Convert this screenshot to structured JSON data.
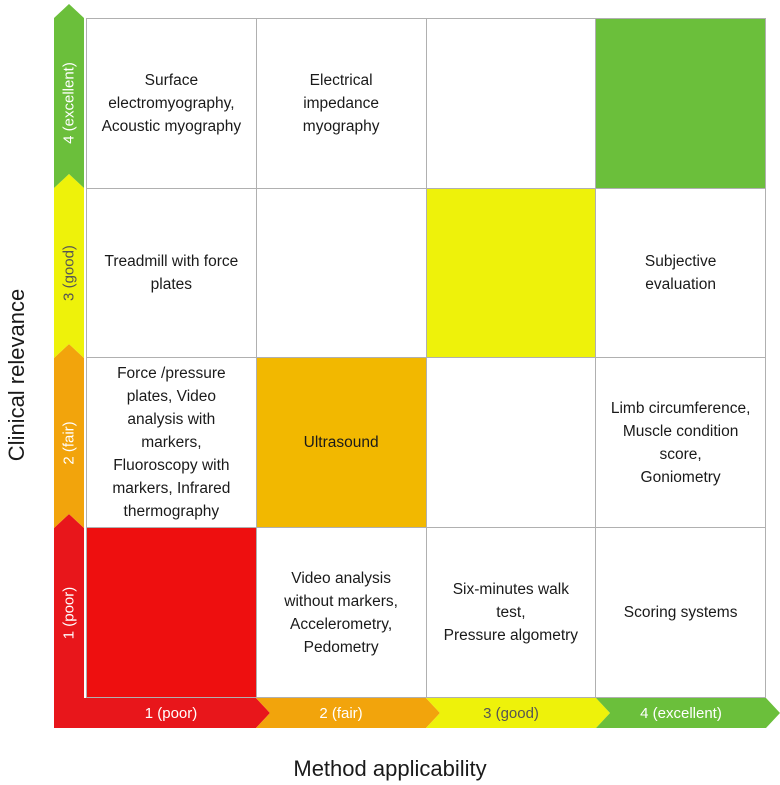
{
  "axes": {
    "x_title": "Method applicability",
    "y_title": "Clinical relevance",
    "x_levels": [
      {
        "label": "1 (poor)",
        "color": "#e8161b"
      },
      {
        "label": "2 (fair)",
        "color": "#f2a40c"
      },
      {
        "label": "3 (good)",
        "color": "#eef20a"
      },
      {
        "label": "4 (excellent)",
        "color": "#6bbf3b"
      }
    ],
    "y_levels": [
      {
        "label": "1 (poor)",
        "color": "#e8161b"
      },
      {
        "label": "2 (fair)",
        "color": "#f2a40c"
      },
      {
        "label": "3 (good)",
        "color": "#eef20a"
      },
      {
        "label": "4 (excellent)",
        "color": "#6bbf3b"
      }
    ]
  },
  "grid": {
    "rows": [
      {
        "relevance": "4 (excellent)",
        "cells": [
          {
            "text": "Surface\nelectromyography,\nAcoustic myography",
            "fill": "#ffffff"
          },
          {
            "text": "Electrical\nimpedance\nmyography",
            "fill": "#ffffff"
          },
          {
            "text": "",
            "fill": "#ffffff"
          },
          {
            "text": "",
            "fill": "#6bbf3b"
          }
        ]
      },
      {
        "relevance": "3 (good)",
        "cells": [
          {
            "text": "Treadmill with force\nplates",
            "fill": "#ffffff"
          },
          {
            "text": "",
            "fill": "#ffffff"
          },
          {
            "text": "",
            "fill": "#eef20a"
          },
          {
            "text": "Subjective\nevaluation",
            "fill": "#ffffff"
          }
        ]
      },
      {
        "relevance": "2 (fair)",
        "cells": [
          {
            "text": "Force /pressure\nplates, Video\nanalysis with\nmarkers,\nFluoroscopy with\nmarkers, Infrared\nthermography",
            "fill": "#ffffff"
          },
          {
            "text": "Ultrasound",
            "fill": "#f2b800"
          },
          {
            "text": "",
            "fill": "#ffffff"
          },
          {
            "text": "Limb circumference,\nMuscle condition\nscore,\nGoniometry",
            "fill": "#ffffff"
          }
        ]
      },
      {
        "relevance": "1 (poor)",
        "cells": [
          {
            "text": "",
            "fill": "#ee0f0f"
          },
          {
            "text": "Video analysis\nwithout markers,\nAccelerometry,\nPedometry",
            "fill": "#ffffff"
          },
          {
            "text": "Six-minutes walk\ntest,\nPressure algometry",
            "fill": "#ffffff"
          },
          {
            "text": "Scoring systems",
            "fill": "#ffffff"
          }
        ]
      }
    ]
  }
}
